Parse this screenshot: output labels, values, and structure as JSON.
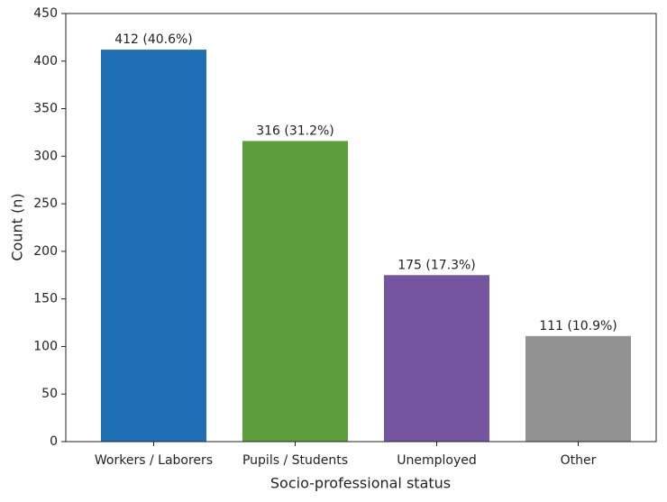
{
  "chart_data": {
    "type": "bar",
    "x_label": "Socio-professional status",
    "y_label": "Count (n)",
    "categories": [
      "Workers / Laborers",
      "Pupils / Students",
      "Unemployed",
      "Other"
    ],
    "values": [
      412,
      316,
      175,
      111
    ],
    "value_labels": [
      "412 (40.6%)",
      "316 (31.2%)",
      "175 (17.3%)",
      "111 (10.9%)"
    ],
    "colors": [
      "#1f6fb4",
      "#5c9e3c",
      "#7655a0",
      "#929292"
    ],
    "ylim": [
      0,
      450
    ],
    "yticks": [
      0,
      50,
      100,
      150,
      200,
      250,
      300,
      350,
      400,
      450
    ],
    "grid": false
  }
}
